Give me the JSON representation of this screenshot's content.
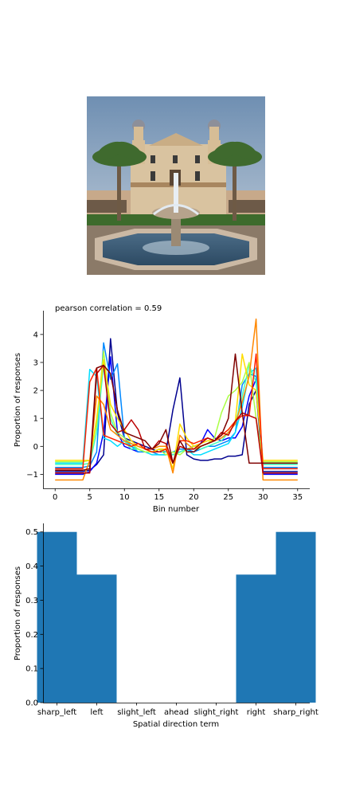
{
  "photo": {
    "subject": "courtyard fountain with palm trees in front of a mission-style building"
  },
  "chart_data": [
    {
      "type": "line",
      "title": "pearson correlation = 0.59",
      "xlabel": "Bin number",
      "ylabel": "Proportion of responses",
      "xlim": [
        -1.75,
        36.75
      ],
      "ylim": [
        -1.5,
        4.85
      ],
      "xticks": [
        0,
        5,
        10,
        15,
        20,
        25,
        30,
        35
      ],
      "yticks": [
        -1,
        0,
        1,
        2,
        3,
        4
      ],
      "grid": false,
      "legend": "none",
      "x": [
        0,
        1,
        2,
        3,
        4,
        5,
        6,
        7,
        8,
        9,
        10,
        11,
        12,
        13,
        14,
        15,
        16,
        17,
        18,
        19,
        20,
        21,
        22,
        23,
        24,
        25,
        26,
        27,
        28,
        29,
        30,
        31,
        32,
        33,
        34,
        35
      ],
      "series": [
        {
          "color": "#00008f",
          "values": [
            -0.9,
            -0.9,
            -0.9,
            -0.9,
            -0.9,
            -0.85,
            -0.65,
            -0.3,
            3.85,
            1.2,
            0.3,
            0.2,
            0.1,
            0.0,
            -0.1,
            -0.2,
            -0.2,
            1.3,
            2.45,
            -0.3,
            -0.45,
            -0.5,
            -0.5,
            -0.45,
            -0.45,
            -0.35,
            -0.35,
            -0.3,
            1.5,
            2.0,
            -0.9,
            -0.9,
            -0.9,
            -0.9,
            -0.9,
            -0.9
          ]
        },
        {
          "color": "#0000ff",
          "values": [
            -1.0,
            -1.0,
            -1.0,
            -1.0,
            -1.0,
            -0.9,
            -0.6,
            0.5,
            3.2,
            0.5,
            0.0,
            -0.1,
            -0.2,
            -0.2,
            -0.2,
            -0.2,
            -0.2,
            -0.3,
            -0.2,
            -0.1,
            0.0,
            0.1,
            0.6,
            0.3,
            0.2,
            0.3,
            0.3,
            0.7,
            1.8,
            2.4,
            -1.0,
            -1.0,
            -1.0,
            -1.0,
            -1.0,
            -1.0
          ]
        },
        {
          "color": "#0088ff",
          "values": [
            -0.75,
            -0.75,
            -0.75,
            -0.75,
            -0.75,
            -0.7,
            -0.2,
            3.7,
            2.4,
            2.95,
            0.3,
            0.0,
            -0.2,
            -0.2,
            -0.2,
            -0.3,
            -0.3,
            -0.2,
            -0.1,
            -0.1,
            -0.2,
            -0.1,
            0.0,
            0.0,
            0.1,
            0.2,
            0.5,
            2.2,
            2.6,
            2.5,
            -0.75,
            -0.75,
            -0.75,
            -0.75,
            -0.75,
            -0.75
          ]
        },
        {
          "color": "#00ddff",
          "values": [
            -0.6,
            -0.6,
            -0.6,
            -0.6,
            -0.6,
            2.75,
            2.5,
            0.3,
            0.2,
            0.0,
            0.2,
            0.0,
            -0.1,
            -0.2,
            -0.3,
            -0.3,
            -0.3,
            -0.2,
            -0.2,
            -0.1,
            -0.3,
            -0.3,
            -0.2,
            -0.1,
            0.0,
            0.1,
            0.5,
            1.4,
            2.6,
            2.8,
            -0.6,
            -0.6,
            -0.6,
            -0.6,
            -0.6,
            -0.6
          ]
        },
        {
          "color": "#44ffbb",
          "values": [
            -0.65,
            -0.65,
            -0.65,
            -0.65,
            -0.65,
            -0.6,
            0.5,
            2.9,
            1.0,
            0.4,
            0.2,
            -0.1,
            -0.1,
            -0.2,
            -0.2,
            -0.1,
            -0.2,
            -0.3,
            -0.2,
            -0.1,
            -0.1,
            -0.1,
            0.0,
            0.1,
            0.2,
            0.5,
            0.8,
            1.8,
            2.9,
            2.3,
            -0.65,
            -0.65,
            -0.65,
            -0.65,
            -0.65,
            -0.65
          ]
        },
        {
          "color": "#aaff44",
          "values": [
            -0.55,
            -0.55,
            -0.55,
            -0.55,
            -0.55,
            -0.5,
            0.8,
            3.4,
            1.2,
            0.5,
            0.3,
            0.1,
            -0.1,
            -0.2,
            -0.2,
            -0.1,
            -0.3,
            -0.2,
            -0.3,
            -0.1,
            0.0,
            0.0,
            0.1,
            0.3,
            1.2,
            1.8,
            2.0,
            2.3,
            3.0,
            1.0,
            -0.55,
            -0.55,
            -0.55,
            -0.55,
            -0.55,
            -0.55
          ]
        },
        {
          "color": "#ffdd00",
          "values": [
            -0.5,
            -0.5,
            -0.5,
            -0.5,
            -0.5,
            -0.5,
            1.0,
            3.1,
            1.5,
            1.0,
            0.6,
            0.2,
            0.0,
            -0.1,
            -0.2,
            -0.1,
            -0.1,
            -0.8,
            0.8,
            0.3,
            0.0,
            0.1,
            0.2,
            0.2,
            0.4,
            0.6,
            0.9,
            3.3,
            2.2,
            2.0,
            -0.5,
            -0.5,
            -0.5,
            -0.5,
            -0.5,
            -0.5
          ]
        },
        {
          "color": "#ff8800",
          "values": [
            -1.2,
            -1.2,
            -1.2,
            -1.2,
            -1.2,
            -0.5,
            1.8,
            1.5,
            0.6,
            0.4,
            0.2,
            0.1,
            0.0,
            -0.1,
            -0.1,
            0.0,
            0.0,
            -0.95,
            0.4,
            0.1,
            -0.1,
            0.0,
            0.1,
            0.2,
            0.3,
            0.5,
            0.8,
            1.6,
            2.5,
            4.55,
            -1.2,
            -1.2,
            -1.2,
            -1.2,
            -1.2,
            -1.2
          ]
        },
        {
          "color": "#ff2200",
          "values": [
            -0.8,
            -0.8,
            -0.8,
            -0.8,
            -0.8,
            2.3,
            2.8,
            0.4,
            0.3,
            0.2,
            0.1,
            0.0,
            0.1,
            -0.1,
            -0.2,
            -0.2,
            -0.1,
            -0.6,
            0.2,
            0.2,
            0.1,
            0.2,
            0.3,
            0.2,
            0.4,
            0.6,
            0.9,
            1.1,
            1.1,
            3.3,
            -0.8,
            -0.8,
            -0.8,
            -0.8,
            -0.8,
            -0.8
          ]
        },
        {
          "color": "#bb0000",
          "values": [
            -0.95,
            -0.95,
            -0.95,
            -0.95,
            -0.95,
            -0.95,
            2.6,
            2.9,
            0.8,
            0.5,
            0.6,
            0.95,
            0.6,
            -0.1,
            -0.1,
            0.2,
            0.1,
            -0.6,
            0.0,
            -0.1,
            -0.1,
            0.1,
            0.3,
            0.2,
            0.5,
            0.4,
            0.9,
            1.2,
            1.1,
            1.0,
            -0.95,
            -0.95,
            -0.95,
            -0.95,
            -0.95,
            -0.95
          ]
        },
        {
          "color": "#7f0000",
          "values": [
            -0.85,
            -0.85,
            -0.85,
            -0.85,
            -0.85,
            -0.8,
            2.8,
            2.9,
            2.6,
            1.3,
            0.5,
            0.4,
            0.3,
            0.2,
            -0.1,
            0.1,
            0.6,
            -0.6,
            0.2,
            -0.2,
            -0.2,
            0.0,
            0.1,
            0.2,
            0.4,
            1.0,
            3.3,
            1.2,
            -0.6,
            -0.6,
            -0.6,
            -0.6,
            -0.6,
            -0.6,
            -0.6,
            -0.6
          ]
        }
      ]
    },
    {
      "type": "bar",
      "xlabel": "Spatial direction term",
      "ylabel": "Proportion of responses",
      "ylim": [
        0,
        0.525
      ],
      "yticks": [
        0.0,
        0.1,
        0.2,
        0.3,
        0.4,
        0.5
      ],
      "grid": false,
      "legend": "none",
      "bar_color": "#1f77b4",
      "categories": [
        "sharp_left",
        "left",
        "slight_left",
        "ahead",
        "slight_right",
        "right",
        "sharp_right"
      ],
      "values": [
        0.5,
        0.375,
        0.0,
        0.0,
        0.0,
        0.375,
        0.5
      ]
    }
  ]
}
